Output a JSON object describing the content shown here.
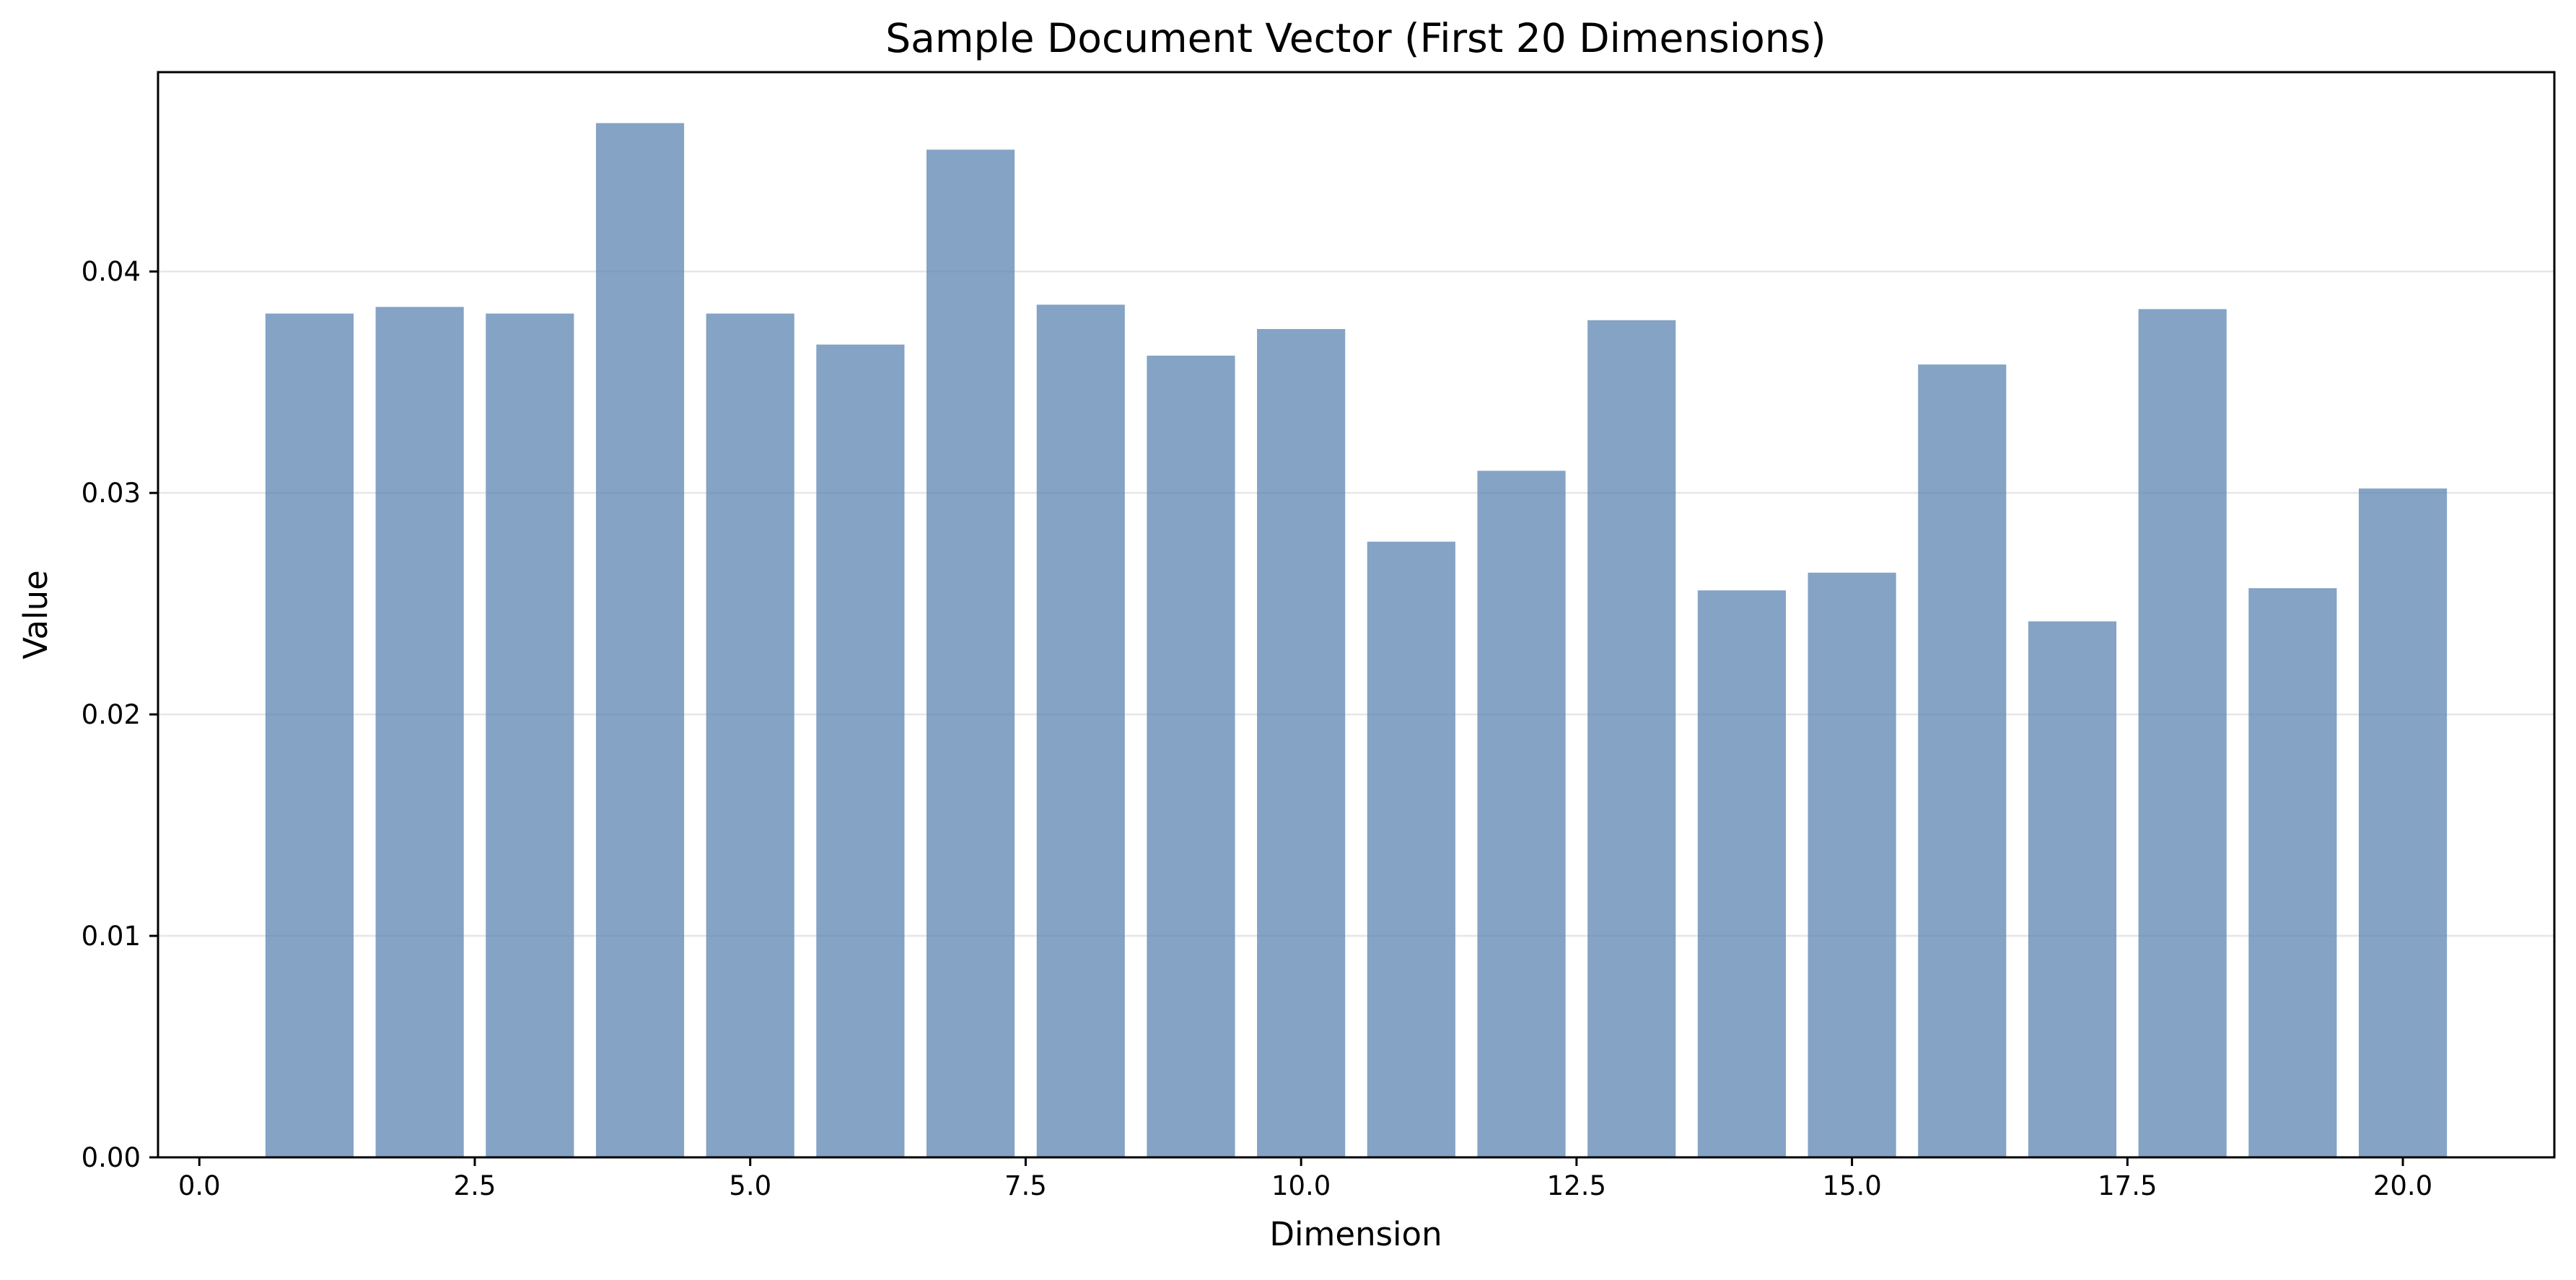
{
  "chart_data": {
    "type": "bar",
    "title": "Sample Document Vector (First 20 Dimensions)",
    "xlabel": "Dimension",
    "ylabel": "Value",
    "x": [
      1,
      2,
      3,
      4,
      5,
      6,
      7,
      8,
      9,
      10,
      11,
      12,
      13,
      14,
      15,
      16,
      17,
      18,
      19,
      20
    ],
    "values": [
      0.0381,
      0.0384,
      0.0381,
      0.0467,
      0.0381,
      0.0367,
      0.0455,
      0.0385,
      0.0362,
      0.0374,
      0.0278,
      0.031,
      0.0378,
      0.0256,
      0.0264,
      0.0358,
      0.0242,
      0.0383,
      0.0257,
      0.0302
    ],
    "xlim": [
      -0.375,
      21.375
    ],
    "ylim": [
      0,
      0.049
    ],
    "xticks": [
      0.0,
      2.5,
      5.0,
      7.5,
      10.0,
      12.5,
      15.0,
      17.5,
      20.0
    ],
    "xtick_labels": [
      "0.0",
      "2.5",
      "5.0",
      "7.5",
      "10.0",
      "12.5",
      "15.0",
      "17.5",
      "20.0"
    ],
    "yticks": [
      0.0,
      0.01,
      0.02,
      0.03,
      0.04
    ],
    "ytick_labels": [
      "0.00",
      "0.01",
      "0.02",
      "0.03",
      "0.04"
    ],
    "grid": "y",
    "bar_color": "#5b84b1",
    "bar_opacity": 0.75
  }
}
